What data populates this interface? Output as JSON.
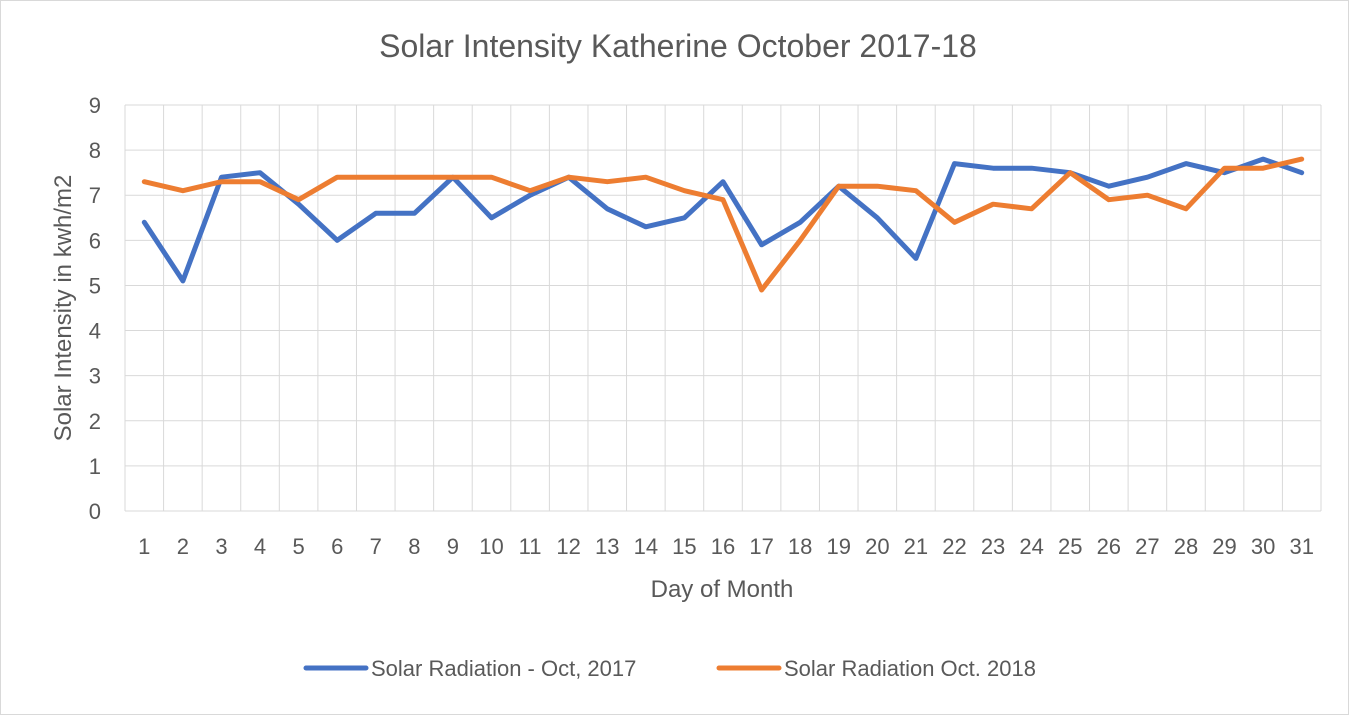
{
  "chart_data": {
    "type": "line",
    "title": "Solar Intensity Katherine October 2017-18",
    "xlabel": "Day of Month",
    "ylabel": "Solar Intensity in kwh/m2",
    "ylim": [
      0,
      9
    ],
    "yticks": [
      0,
      1,
      2,
      3,
      4,
      5,
      6,
      7,
      8,
      9
    ],
    "grid": true,
    "legend_position": "bottom",
    "x": [
      "1",
      "2",
      "3",
      "4",
      "5",
      "6",
      "7",
      "8",
      "9",
      "10",
      "11",
      "12",
      "13",
      "14",
      "15",
      "16",
      "17",
      "18",
      "19",
      "20",
      "21",
      "22",
      "23",
      "24",
      "25",
      "26",
      "27",
      "28",
      "29",
      "30",
      "31"
    ],
    "series": [
      {
        "name": "Solar Radiation - Oct, 2017",
        "color": "#4472c4",
        "values": [
          6.4,
          5.1,
          7.4,
          7.5,
          6.8,
          6.0,
          6.6,
          6.6,
          7.4,
          6.5,
          7.0,
          7.4,
          6.7,
          6.3,
          6.5,
          7.3,
          5.9,
          6.4,
          7.2,
          6.5,
          5.6,
          7.7,
          7.6,
          7.6,
          7.5,
          7.2,
          7.4,
          7.7,
          7.5,
          7.8,
          7.5
        ]
      },
      {
        "name": "Solar Radiation Oct. 2018",
        "color": "#ed7d31",
        "values": [
          7.3,
          7.1,
          7.3,
          7.3,
          6.9,
          7.4,
          7.4,
          7.4,
          7.4,
          7.4,
          7.1,
          7.4,
          7.3,
          7.4,
          7.1,
          6.9,
          4.9,
          6.0,
          7.2,
          7.2,
          7.1,
          6.4,
          6.8,
          6.7,
          7.5,
          6.9,
          7.0,
          6.7,
          7.6,
          7.6,
          7.8
        ]
      }
    ]
  }
}
